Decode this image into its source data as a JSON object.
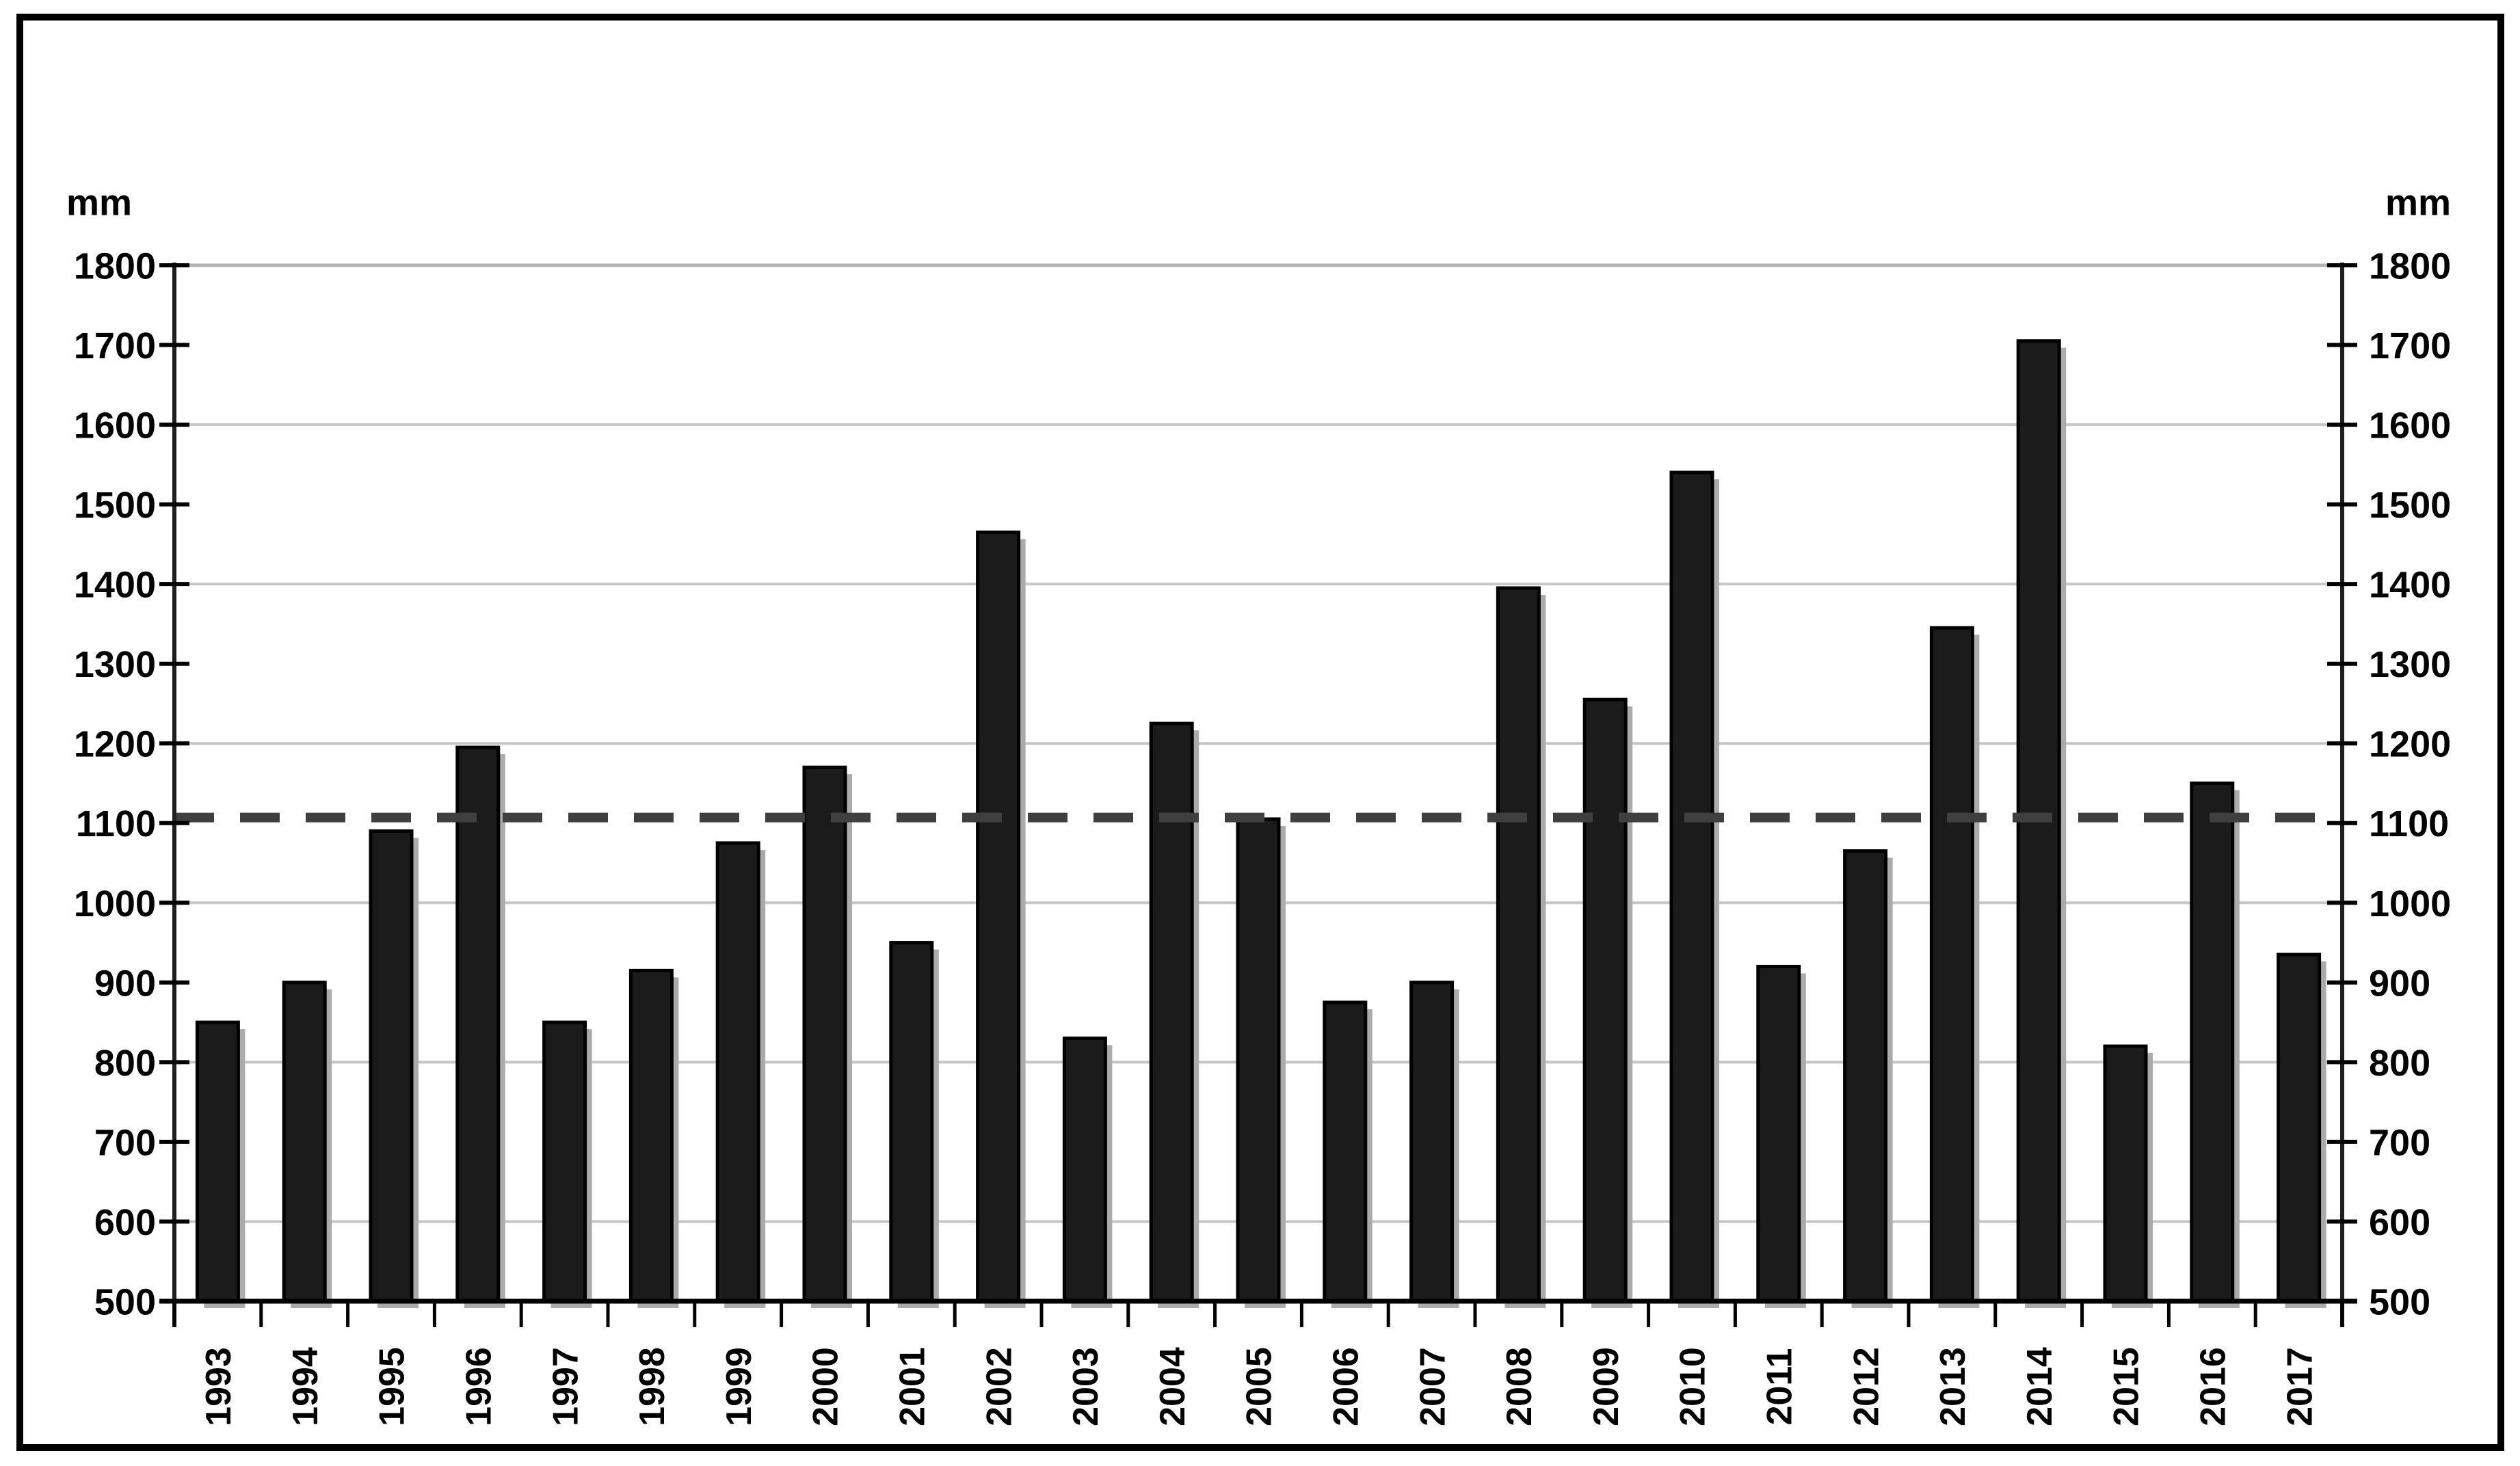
{
  "chart_data": {
    "type": "bar",
    "title": "",
    "unit_label_left": "mm",
    "unit_label_right": "mm",
    "categories": [
      "1993",
      "1994",
      "1995",
      "1996",
      "1997",
      "1998",
      "1999",
      "2000",
      "2001",
      "2002",
      "2003",
      "2004",
      "2005",
      "2006",
      "2007",
      "2008",
      "2009",
      "2010",
      "2011",
      "2012",
      "2013",
      "2014",
      "2015",
      "2016",
      "2017"
    ],
    "values": [
      850,
      900,
      1090,
      1195,
      850,
      915,
      1075,
      1170,
      950,
      1465,
      830,
      1225,
      1105,
      875,
      900,
      1395,
      1255,
      1540,
      920,
      1065,
      1345,
      1705,
      820,
      1150,
      935
    ],
    "xlabel": "",
    "ylabel": "mm",
    "ylim": [
      500,
      1800
    ],
    "ytick_interval": 100,
    "ytick_labels_left": [
      "1800",
      "1700",
      "1600",
      "1500",
      "1400",
      "1300",
      "1200",
      "1100",
      "1000",
      "900",
      "800",
      "700",
      "600",
      "500"
    ],
    "ytick_labels_right": [
      "1800",
      "1700",
      "1600",
      "1500",
      "1400",
      "1300",
      "1200",
      "1100",
      "1000",
      "900",
      "800",
      "700",
      "600",
      "500"
    ],
    "gridline_values": [
      600,
      800,
      1000,
      1200,
      1400,
      1600,
      1800
    ],
    "grid": "horizontal-even-hundreds",
    "legend": "none",
    "mean_line_value": 1107,
    "mean_line_style": "dashed",
    "colors": {
      "background": "#ffffff",
      "bar_fill": "#1b1b1b",
      "bar_stroke": "#000000",
      "bar_shadow": "#ababab",
      "gridline": "#c6c6c6",
      "gridline_top": "#b2b2b2",
      "axis": "#1f1f1f",
      "baseline": "#000000",
      "tick": "#000000",
      "mean_line": "#3f3f3f",
      "frame": "#000000"
    }
  }
}
